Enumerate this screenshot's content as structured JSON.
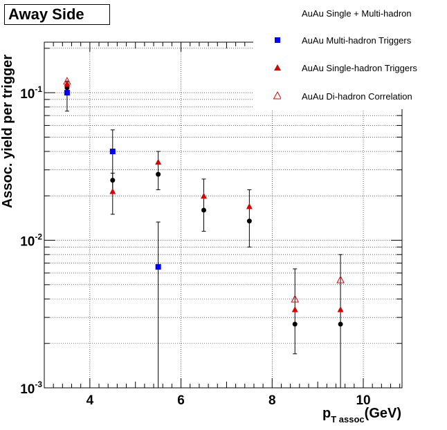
{
  "chart_data": {
    "type": "scatter",
    "title": "Away Side",
    "xlabel_main": "p",
    "xlabel_sub": "T assoc",
    "xlabel_unit": "(GeV)",
    "ylabel": "Assoc. yield per trigger",
    "xlim": [
      3.0,
      10.85
    ],
    "ylim": [
      0.001,
      0.22
    ],
    "yscale": "log",
    "grid": true,
    "legend_position": "top-right",
    "x_ticks": [
      "4",
      "6",
      "8",
      "10"
    ],
    "y_ticks": [
      {
        "base": "10",
        "exp": "-1"
      },
      {
        "base": "10",
        "exp": "-2"
      },
      {
        "base": "10",
        "exp": "-3"
      }
    ],
    "series": [
      {
        "name": "AuAu Single + Multi-hadron",
        "marker": "circle",
        "color": "#000000",
        "x": [
          3.5,
          4.5,
          5.5,
          6.5,
          7.5,
          8.5,
          9.5
        ],
        "y": [
          0.108,
          0.0255,
          0.028,
          0.016,
          0.0135,
          0.0027,
          0.0027
        ],
        "err_lo": [
          0.01,
          0.0045,
          0.006,
          0.0045,
          0.0045,
          0.001,
          0.0017
        ],
        "err_hi": [
          0.01,
          0.003,
          0.012,
          0.01,
          0.0085,
          0.0037,
          0.0053
        ]
      },
      {
        "name": "AuAu Multi-hadron Triggers",
        "marker": "square",
        "color": "#0000ff",
        "x": [
          3.5,
          4.5,
          5.5
        ],
        "y": [
          0.1,
          0.04,
          0.0066
        ],
        "err_lo": [
          0.025,
          0.025,
          0.0065
        ],
        "err_hi": [
          0.02,
          0.016,
          0.0067
        ]
      },
      {
        "name": "AuAu Single-hadron Triggers",
        "marker": "triangle",
        "color": "#dd0000",
        "x": [
          3.5,
          4.5,
          5.5,
          6.5,
          7.5,
          8.5,
          9.5
        ],
        "y": [
          0.115,
          0.0215,
          0.034,
          0.02,
          0.017,
          0.0034,
          0.0034
        ],
        "err_lo": [
          0.0,
          0.0,
          0.0,
          0.0,
          0.0,
          0.0,
          0.0
        ],
        "err_hi": [
          0.0,
          0.0,
          0.0,
          0.0,
          0.0,
          0.0,
          0.0
        ]
      },
      {
        "name": "AuAu Di-hadron Correlation",
        "marker": "triangle-open",
        "color": "#dd0000",
        "x": [
          3.5,
          8.5,
          9.5
        ],
        "y": [
          0.12,
          0.004,
          0.0054
        ],
        "err_lo": [
          0.0,
          0.0,
          0.0
        ],
        "err_hi": [
          0.0,
          0.0,
          0.0
        ]
      }
    ]
  }
}
